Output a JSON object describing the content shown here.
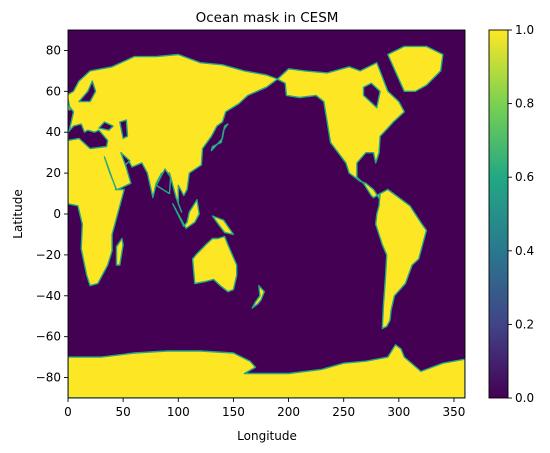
{
  "chart_data": {
    "type": "heatmap",
    "title": "Ocean mask in CESM",
    "xlabel": "Longitude",
    "ylabel": "Latitude",
    "xlim": [
      0,
      360
    ],
    "ylim": [
      -90,
      90
    ],
    "xticks": [
      0,
      50,
      100,
      150,
      200,
      250,
      300,
      350
    ],
    "yticks": [
      -80,
      -60,
      -40,
      -20,
      0,
      20,
      40,
      60,
      80
    ],
    "colorbar": {
      "range": [
        0.0,
        1.0
      ],
      "ticks": [
        "0.0",
        "0.2",
        "0.4",
        "0.6",
        "0.8",
        "1.0"
      ],
      "colormap": "viridis",
      "colors": [
        "#440154",
        "#414487",
        "#2a788e",
        "#22a884",
        "#7ad151",
        "#fde725"
      ]
    },
    "value_meaning": {
      "ocean": 0.0,
      "land": 1.0
    },
    "background_value": 0.0,
    "land_regions": [
      {
        "name": "Eurasia-Africa",
        "value": 1.0,
        "polygon": [
          [
            0,
            38
          ],
          [
            5,
            50
          ],
          [
            -5,
            57
          ],
          [
            5,
            60
          ],
          [
            10,
            65
          ],
          [
            20,
            70
          ],
          [
            40,
            72
          ],
          [
            60,
            77
          ],
          [
            80,
            77
          ],
          [
            100,
            78
          ],
          [
            120,
            74
          ],
          [
            140,
            73
          ],
          [
            160,
            70
          ],
          [
            180,
            68
          ],
          [
            190,
            66
          ],
          [
            180,
            62
          ],
          [
            163,
            58
          ],
          [
            155,
            54
          ],
          [
            143,
            50
          ],
          [
            140,
            45
          ],
          [
            135,
            43
          ],
          [
            130,
            38
          ],
          [
            122,
            32
          ],
          [
            121,
            24
          ],
          [
            110,
            20
          ],
          [
            108,
            12
          ],
          [
            105,
            9
          ],
          [
            100,
            14
          ],
          [
            100,
            5
          ],
          [
            103,
            1
          ],
          [
            98,
            8
          ],
          [
            92,
            20
          ],
          [
            85,
            20
          ],
          [
            80,
            15
          ],
          [
            77,
            8
          ],
          [
            72,
            20
          ],
          [
            67,
            25
          ],
          [
            58,
            23
          ],
          [
            55,
            26
          ],
          [
            50,
            28
          ],
          [
            57,
            15
          ],
          [
            45,
            12
          ],
          [
            43,
            12
          ],
          [
            51,
            12
          ],
          [
            40,
            -10
          ],
          [
            40,
            -18
          ],
          [
            36,
            -25
          ],
          [
            32,
            -29
          ],
          [
            27,
            -34
          ],
          [
            20,
            -35
          ],
          [
            17,
            -30
          ],
          [
            12,
            -17
          ],
          [
            13,
            -5
          ],
          [
            9,
            4
          ],
          [
            0,
            5
          ],
          [
            0,
            38
          ]
        ]
      },
      {
        "name": "Americas-north",
        "value": 1.0,
        "polygon": [
          [
            190,
            66
          ],
          [
            200,
            71
          ],
          [
            215,
            70
          ],
          [
            235,
            69
          ],
          [
            255,
            72
          ],
          [
            265,
            70
          ],
          [
            280,
            74
          ],
          [
            285,
            67
          ],
          [
            290,
            60
          ],
          [
            300,
            55
          ],
          [
            305,
            50
          ],
          [
            295,
            45
          ],
          [
            290,
            42
          ],
          [
            283,
            38
          ],
          [
            282,
            30
          ],
          [
            279,
            25
          ],
          [
            277,
            30
          ],
          [
            270,
            30
          ],
          [
            262,
            25
          ],
          [
            262,
            18
          ],
          [
            268,
            15
          ],
          [
            275,
            9
          ],
          [
            277,
            8
          ],
          [
            283,
            10
          ],
          [
            283,
            7
          ],
          [
            277,
            12
          ],
          [
            270,
            15
          ],
          [
            265,
            16
          ],
          [
            255,
            20
          ],
          [
            252,
            25
          ],
          [
            245,
            30
          ],
          [
            238,
            35
          ],
          [
            235,
            45
          ],
          [
            232,
            55
          ],
          [
            225,
            58
          ],
          [
            210,
            57
          ],
          [
            198,
            58
          ],
          [
            197,
            64
          ],
          [
            190,
            66
          ]
        ]
      },
      {
        "name": "Americas-south",
        "value": 1.0,
        "polygon": [
          [
            283,
            10
          ],
          [
            290,
            12
          ],
          [
            300,
            8
          ],
          [
            310,
            4
          ],
          [
            321,
            -5
          ],
          [
            325,
            -8
          ],
          [
            318,
            -22
          ],
          [
            312,
            -25
          ],
          [
            306,
            -34
          ],
          [
            296,
            -40
          ],
          [
            293,
            -47
          ],
          [
            292,
            -52
          ],
          [
            289,
            -55
          ],
          [
            285,
            -56
          ],
          [
            286,
            -45
          ],
          [
            288,
            -30
          ],
          [
            289,
            -20
          ],
          [
            285,
            -15
          ],
          [
            279,
            -5
          ],
          [
            280,
            0
          ],
          [
            282,
            4
          ],
          [
            283,
            10
          ]
        ]
      },
      {
        "name": "Greenland",
        "value": 1.0,
        "polygon": [
          [
            305,
            60
          ],
          [
            300,
            66
          ],
          [
            290,
            78
          ],
          [
            305,
            82
          ],
          [
            325,
            82
          ],
          [
            340,
            78
          ],
          [
            338,
            70
          ],
          [
            325,
            63
          ],
          [
            315,
            60
          ],
          [
            305,
            60
          ]
        ]
      },
      {
        "name": "Australia",
        "value": 1.0,
        "polygon": [
          [
            113,
            -22
          ],
          [
            115,
            -34
          ],
          [
            125,
            -33
          ],
          [
            132,
            -32
          ],
          [
            138,
            -35
          ],
          [
            145,
            -38
          ],
          [
            150,
            -37
          ],
          [
            153,
            -30
          ],
          [
            153,
            -25
          ],
          [
            145,
            -15
          ],
          [
            142,
            -11
          ],
          [
            136,
            -12
          ],
          [
            131,
            -12
          ],
          [
            125,
            -15
          ],
          [
            116,
            -20
          ],
          [
            113,
            -22
          ]
        ]
      },
      {
        "name": "Antarctica",
        "value": 1.0,
        "polygon": [
          [
            0,
            -70
          ],
          [
            30,
            -70
          ],
          [
            60,
            -68
          ],
          [
            90,
            -67
          ],
          [
            120,
            -67
          ],
          [
            150,
            -68
          ],
          [
            165,
            -72
          ],
          [
            170,
            -75
          ],
          [
            160,
            -78
          ],
          [
            200,
            -78
          ],
          [
            230,
            -76
          ],
          [
            250,
            -73
          ],
          [
            270,
            -72
          ],
          [
            290,
            -70
          ],
          [
            297,
            -64
          ],
          [
            302,
            -66
          ],
          [
            305,
            -70
          ],
          [
            320,
            -77
          ],
          [
            340,
            -73
          ],
          [
            360,
            -71
          ],
          [
            360,
            -90
          ],
          [
            0,
            -90
          ],
          [
            0,
            -70
          ]
        ]
      },
      {
        "name": "Madagascar",
        "value": 1.0,
        "polygon": [
          [
            44,
            -25
          ],
          [
            47,
            -25
          ],
          [
            50,
            -15
          ],
          [
            49,
            -12
          ],
          [
            44,
            -16
          ],
          [
            44,
            -25
          ]
        ]
      },
      {
        "name": "Japan",
        "value": 1.0,
        "polygon": [
          [
            130,
            31
          ],
          [
            135,
            34
          ],
          [
            140,
            37
          ],
          [
            142,
            43
          ],
          [
            145,
            44
          ],
          [
            141,
            41
          ],
          [
            139,
            35
          ],
          [
            131,
            33
          ],
          [
            130,
            31
          ]
        ]
      },
      {
        "name": "Borneo-Sumatra",
        "value": 1.0,
        "polygon": [
          [
            95,
            5
          ],
          [
            105,
            -6
          ],
          [
            108,
            -4
          ],
          [
            110,
            1
          ],
          [
            117,
            7
          ],
          [
            119,
            0
          ],
          [
            115,
            -4
          ],
          [
            107,
            -7
          ],
          [
            95,
            5
          ]
        ]
      },
      {
        "name": "New Guinea",
        "value": 1.0,
        "polygon": [
          [
            131,
            -1
          ],
          [
            141,
            -3
          ],
          [
            150,
            -10
          ],
          [
            142,
            -9
          ],
          [
            135,
            -4
          ],
          [
            131,
            -1
          ]
        ]
      },
      {
        "name": "UK",
        "value": 1.0,
        "polygon": [
          [
            -6,
            50
          ],
          [
            2,
            51
          ],
          [
            0,
            56
          ],
          [
            -3,
            58
          ],
          [
            -6,
            56
          ],
          [
            -6,
            50
          ]
        ]
      },
      {
        "name": "New Zealand",
        "value": 1.0,
        "polygon": [
          [
            167,
            -46
          ],
          [
            172,
            -44
          ],
          [
            175,
            -42
          ],
          [
            178,
            -38
          ],
          [
            173,
            -35
          ],
          [
            174,
            -40
          ],
          [
            170,
            -43
          ],
          [
            167,
            -46
          ]
        ]
      }
    ],
    "inland_water": [
      {
        "name": "Mediterranean",
        "value": 0.0,
        "polygon": [
          [
            0,
            36
          ],
          [
            10,
            37
          ],
          [
            20,
            32
          ],
          [
            35,
            33
          ],
          [
            36,
            36
          ],
          [
            28,
            41
          ],
          [
            24,
            40
          ],
          [
            18,
            41
          ],
          [
            15,
            40
          ],
          [
            12,
            44
          ],
          [
            5,
            43
          ],
          [
            0,
            40
          ],
          [
            0,
            36
          ]
        ]
      },
      {
        "name": "Black Sea",
        "value": 0.0,
        "polygon": [
          [
            28,
            42
          ],
          [
            33,
            45
          ],
          [
            41,
            43
          ],
          [
            37,
            41
          ],
          [
            28,
            42
          ]
        ]
      },
      {
        "name": "Hudson Bay",
        "value": 0.0,
        "polygon": [
          [
            268,
            58
          ],
          [
            280,
            52
          ],
          [
            283,
            60
          ],
          [
            275,
            64
          ],
          [
            268,
            62
          ],
          [
            268,
            58
          ]
        ]
      },
      {
        "name": "Baltic",
        "value": 0.0,
        "polygon": [
          [
            10,
            55
          ],
          [
            20,
            55
          ],
          [
            25,
            60
          ],
          [
            22,
            65
          ],
          [
            18,
            60
          ],
          [
            10,
            55
          ]
        ]
      },
      {
        "name": "Red Sea",
        "value": 0.0,
        "polygon": [
          [
            33,
            28
          ],
          [
            43,
            13
          ],
          [
            44,
            12
          ],
          [
            38,
            20
          ],
          [
            33,
            28
          ]
        ]
      },
      {
        "name": "Persian Gulf",
        "value": 0.0,
        "polygon": [
          [
            48,
            30
          ],
          [
            56,
            26
          ],
          [
            52,
            24
          ],
          [
            48,
            30
          ]
        ]
      },
      {
        "name": "Caspian",
        "value": 0.0,
        "polygon": [
          [
            47,
            45
          ],
          [
            53,
            46
          ],
          [
            54,
            38
          ],
          [
            50,
            37
          ],
          [
            47,
            45
          ]
        ]
      },
      {
        "name": "Bay of Bengal",
        "value": 0.0,
        "polygon": [
          [
            80,
            14
          ],
          [
            88,
            22
          ],
          [
            93,
            18
          ],
          [
            92,
            10
          ],
          [
            80,
            14
          ]
        ]
      }
    ]
  }
}
